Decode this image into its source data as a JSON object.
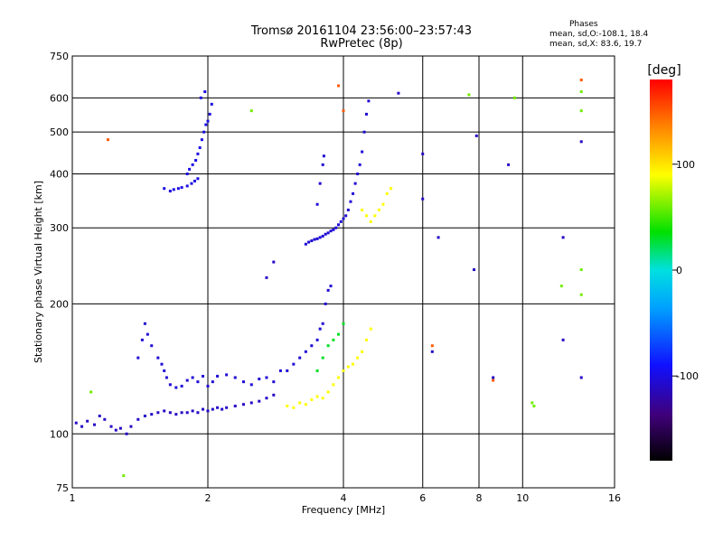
{
  "chart_data": {
    "type": "scatter",
    "title": "Tromsø 20161104 23:56:00–23:57:43",
    "subtitle": "RwPretec (8p)",
    "xlabel": "Frequency [MHz]",
    "ylabel": "Stationary phase Virtual Height [km]",
    "x_scale": "log",
    "y_scale": "log",
    "xlim": [
      1,
      16
    ],
    "ylim": [
      75,
      750
    ],
    "x_ticks": [
      1,
      2,
      4,
      6,
      8,
      10,
      16
    ],
    "y_ticks": [
      75,
      100,
      200,
      300,
      400,
      500,
      600,
      750
    ],
    "x_gridlines": [
      1,
      2,
      4,
      6,
      8,
      10,
      16
    ],
    "y_gridlines": [
      75,
      100,
      200,
      300,
      400,
      500,
      600,
      750
    ],
    "grid": true,
    "phase_stats": {
      "header": "Phases",
      "o_line": "mean, sd,O:-108.1, 18.4",
      "x_line": "mean, sd,X:  83.6, 19.7"
    },
    "colorbar": {
      "label": "[deg]",
      "range": [
        -180,
        180
      ],
      "ticks": [
        100,
        0,
        -100
      ],
      "tick_labels": [
        "100",
        "0",
        "-100"
      ]
    },
    "point_groups": [
      {
        "phase": -110,
        "points": [
          [
            1.02,
            106
          ],
          [
            1.05,
            104
          ],
          [
            1.08,
            107
          ],
          [
            1.12,
            105
          ],
          [
            1.15,
            110
          ],
          [
            1.18,
            108
          ],
          [
            1.22,
            104
          ],
          [
            1.25,
            102
          ],
          [
            1.28,
            103
          ],
          [
            1.32,
            100
          ],
          [
            1.35,
            104
          ],
          [
            1.4,
            108
          ],
          [
            1.45,
            110
          ],
          [
            1.5,
            111
          ],
          [
            1.55,
            112
          ],
          [
            1.6,
            113
          ],
          [
            1.65,
            112
          ],
          [
            1.7,
            111
          ],
          [
            1.75,
            112
          ],
          [
            1.8,
            112
          ],
          [
            1.85,
            113
          ],
          [
            1.9,
            112
          ],
          [
            1.95,
            114
          ],
          [
            2.0,
            113
          ],
          [
            2.05,
            114
          ],
          [
            2.1,
            115
          ],
          [
            2.15,
            114
          ],
          [
            2.2,
            115
          ],
          [
            2.3,
            116
          ],
          [
            2.4,
            117
          ],
          [
            2.5,
            118
          ],
          [
            2.6,
            119
          ],
          [
            2.7,
            121
          ],
          [
            2.8,
            123
          ]
        ]
      },
      {
        "phase": -105,
        "points": [
          [
            1.4,
            150
          ],
          [
            1.43,
            165
          ],
          [
            1.45,
            180
          ],
          [
            1.47,
            170
          ],
          [
            1.5,
            160
          ],
          [
            1.55,
            150
          ],
          [
            1.58,
            145
          ],
          [
            1.6,
            140
          ],
          [
            1.62,
            135
          ],
          [
            1.65,
            130
          ],
          [
            1.7,
            128
          ],
          [
            1.75,
            129
          ],
          [
            1.8,
            133
          ],
          [
            1.85,
            135
          ],
          [
            1.9,
            132
          ],
          [
            1.95,
            136
          ],
          [
            2.0,
            129
          ],
          [
            2.05,
            132
          ],
          [
            2.1,
            136
          ],
          [
            2.2,
            137
          ],
          [
            2.3,
            135
          ],
          [
            2.4,
            132
          ],
          [
            2.5,
            130
          ],
          [
            2.6,
            134
          ],
          [
            2.7,
            135
          ],
          [
            2.8,
            132
          ],
          [
            2.9,
            140
          ],
          [
            3.0,
            140
          ],
          [
            3.1,
            145
          ],
          [
            3.2,
            150
          ],
          [
            3.3,
            155
          ],
          [
            3.4,
            160
          ],
          [
            3.5,
            165
          ],
          [
            3.55,
            175
          ],
          [
            3.6,
            180
          ],
          [
            3.65,
            200
          ],
          [
            3.7,
            215
          ],
          [
            3.75,
            220
          ]
        ]
      },
      {
        "phase": -100,
        "points": [
          [
            1.8,
            400
          ],
          [
            1.82,
            410
          ],
          [
            1.85,
            420
          ],
          [
            1.88,
            430
          ],
          [
            1.9,
            445
          ],
          [
            1.92,
            460
          ],
          [
            1.94,
            480
          ],
          [
            1.96,
            500
          ],
          [
            1.98,
            520
          ],
          [
            2.0,
            530
          ],
          [
            2.02,
            550
          ],
          [
            2.04,
            580
          ],
          [
            1.93,
            600
          ],
          [
            1.97,
            620
          ],
          [
            1.9,
            390
          ],
          [
            1.87,
            385
          ],
          [
            1.84,
            380
          ],
          [
            1.8,
            375
          ],
          [
            1.75,
            372
          ],
          [
            1.72,
            370
          ],
          [
            1.68,
            368
          ],
          [
            1.65,
            365
          ],
          [
            1.6,
            370
          ]
        ]
      },
      {
        "phase": -105,
        "points": [
          [
            3.3,
            275
          ],
          [
            3.35,
            278
          ],
          [
            3.4,
            280
          ],
          [
            3.45,
            282
          ],
          [
            3.5,
            283
          ],
          [
            3.55,
            285
          ],
          [
            3.6,
            287
          ],
          [
            3.65,
            290
          ],
          [
            3.7,
            292
          ],
          [
            3.75,
            295
          ],
          [
            3.8,
            297
          ],
          [
            3.85,
            300
          ],
          [
            3.9,
            305
          ],
          [
            3.95,
            310
          ],
          [
            4.0,
            315
          ],
          [
            4.05,
            320
          ],
          [
            4.1,
            330
          ],
          [
            4.15,
            345
          ],
          [
            4.2,
            360
          ],
          [
            4.25,
            380
          ],
          [
            4.3,
            400
          ],
          [
            4.35,
            420
          ],
          [
            4.4,
            450
          ],
          [
            4.45,
            500
          ],
          [
            4.5,
            550
          ],
          [
            4.55,
            590
          ],
          [
            3.5,
            340
          ],
          [
            3.55,
            380
          ],
          [
            3.6,
            420
          ],
          [
            3.62,
            440
          ]
        ]
      },
      {
        "phase": 90,
        "points": [
          [
            3.0,
            116
          ],
          [
            3.1,
            115
          ],
          [
            3.2,
            118
          ],
          [
            3.3,
            117
          ],
          [
            3.4,
            120
          ],
          [
            3.5,
            122
          ],
          [
            3.6,
            121
          ],
          [
            3.7,
            125
          ],
          [
            3.8,
            130
          ],
          [
            3.9,
            135
          ],
          [
            4.0,
            140
          ],
          [
            4.1,
            143
          ],
          [
            4.2,
            145
          ],
          [
            4.3,
            150
          ],
          [
            4.4,
            155
          ],
          [
            4.5,
            165
          ],
          [
            4.6,
            175
          ],
          [
            4.4,
            330
          ],
          [
            4.5,
            320
          ],
          [
            4.6,
            310
          ],
          [
            4.7,
            320
          ],
          [
            4.8,
            330
          ],
          [
            4.9,
            340
          ],
          [
            5.0,
            360
          ],
          [
            5.1,
            370
          ]
        ]
      },
      {
        "phase": 30,
        "points": [
          [
            3.5,
            140
          ],
          [
            3.6,
            150
          ],
          [
            3.7,
            160
          ],
          [
            3.8,
            165
          ],
          [
            3.9,
            170
          ],
          [
            4.0,
            180
          ]
        ]
      },
      {
        "phase": -110,
        "points": [
          [
            6.0,
            445
          ],
          [
            6.0,
            350
          ],
          [
            6.5,
            285
          ],
          [
            7.8,
            240
          ],
          [
            7.9,
            490
          ],
          [
            9.3,
            420
          ],
          [
            12.3,
            285
          ],
          [
            12.3,
            165
          ],
          [
            13.5,
            475
          ],
          [
            13.5,
            135
          ],
          [
            8.6,
            135
          ],
          [
            2.8,
            250
          ],
          [
            2.7,
            230
          ],
          [
            5.3,
            615
          ],
          [
            6.3,
            155
          ]
        ]
      },
      {
        "phase": 60,
        "points": [
          [
            7.6,
            610
          ],
          [
            9.6,
            600
          ],
          [
            13.5,
            620
          ],
          [
            13.5,
            560
          ],
          [
            12.2,
            220
          ],
          [
            13.5,
            240
          ],
          [
            13.5,
            210
          ],
          [
            10.5,
            118
          ],
          [
            10.6,
            116
          ],
          [
            2.5,
            560
          ],
          [
            1.1,
            125
          ],
          [
            1.3,
            80
          ]
        ]
      },
      {
        "phase": 150,
        "points": [
          [
            3.9,
            640
          ],
          [
            4.0,
            560
          ],
          [
            13.5,
            660
          ],
          [
            6.3,
            160
          ],
          [
            8.6,
            133
          ],
          [
            1.2,
            480
          ]
        ]
      }
    ]
  }
}
